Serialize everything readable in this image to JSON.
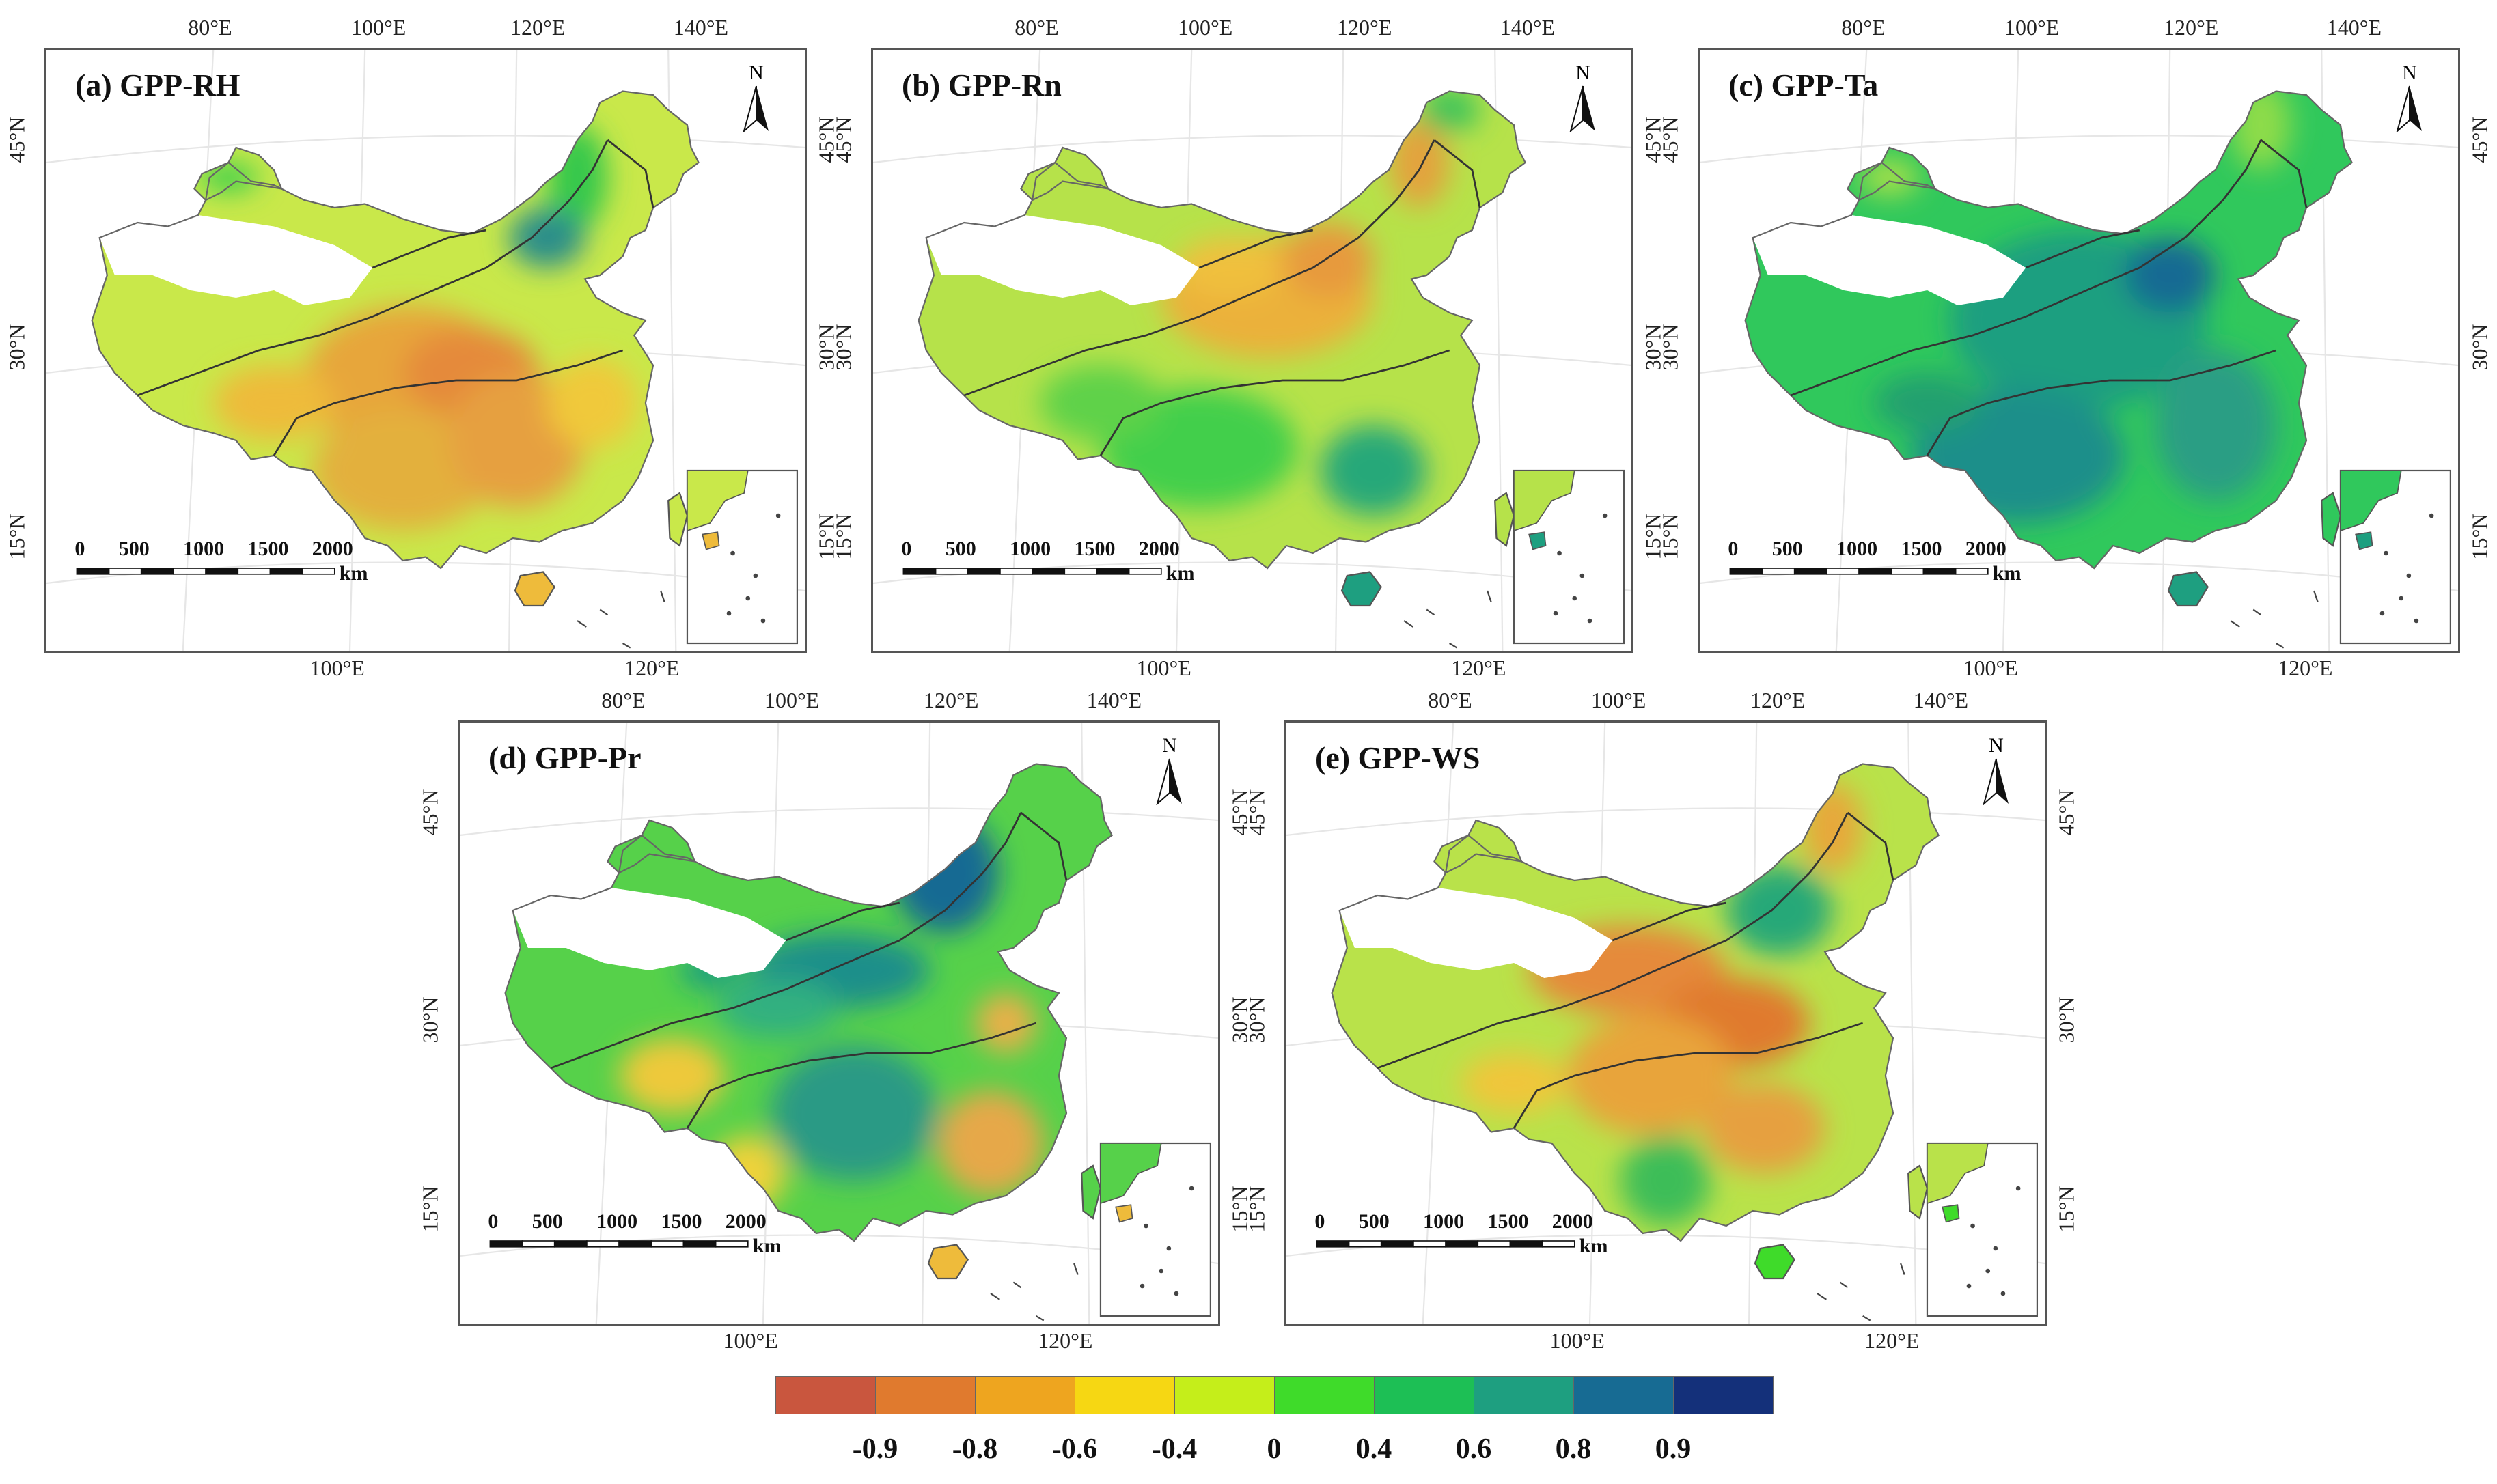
{
  "panels": [
    {
      "id": "a",
      "title": "(a) GPP-RH",
      "scheme": "rh"
    },
    {
      "id": "b",
      "title": "(b) GPP-Rn",
      "scheme": "rn"
    },
    {
      "id": "c",
      "title": "(c) GPP-Ta",
      "scheme": "ta"
    },
    {
      "id": "d",
      "title": "(d) GPP-Pr",
      "scheme": "pr"
    },
    {
      "id": "e",
      "title": "(e) GPP-WS",
      "scheme": "ws"
    }
  ],
  "axis_labels": {
    "top": [
      "80°E",
      "100°E",
      "120°E",
      "140°E"
    ],
    "bottom": [
      "100°E",
      "120°E"
    ],
    "lat": [
      "45°N",
      "30°N",
      "15°N"
    ]
  },
  "scalebar": {
    "ticks": [
      "0",
      "500",
      "1000",
      "1500",
      "2000"
    ],
    "unit": "km"
  },
  "north_label": "N",
  "legend": {
    "colors": [
      "#c9563e",
      "#e07a2e",
      "#eea51f",
      "#f6d713",
      "#c5ee1a",
      "#3fdb2a",
      "#1dbf55",
      "#1e9f80",
      "#176b93",
      "#14307a"
    ],
    "ticks": [
      "-0.9",
      "-0.8",
      "-0.6",
      "-0.4",
      "0",
      "0.4",
      "0.6",
      "0.8",
      "0.9"
    ]
  }
}
